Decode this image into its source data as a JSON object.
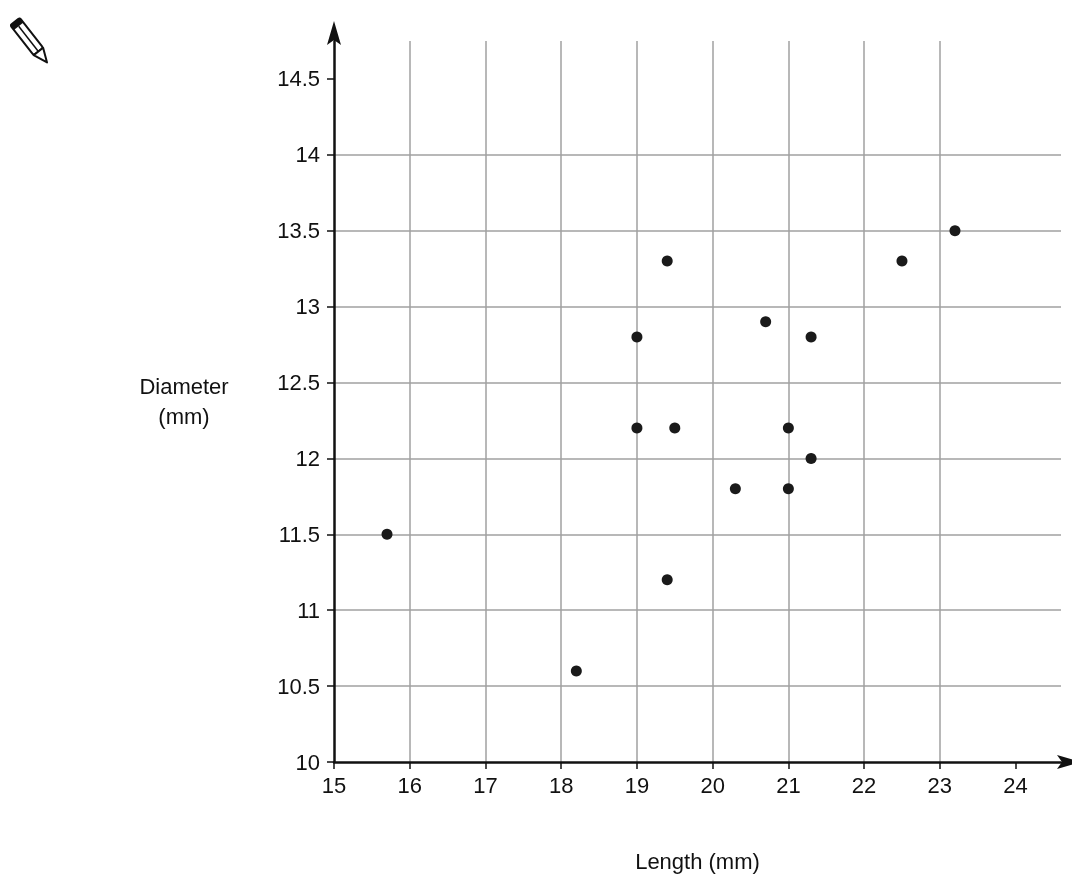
{
  "chart_data": {
    "type": "scatter",
    "xlabel": "Length (mm)",
    "ylabel": "Diameter\n(mm)",
    "x": [
      15.7,
      18.2,
      19.4,
      19.0,
      19.5,
      19.0,
      19.4,
      20.3,
      20.7,
      21.0,
      21.0,
      21.3,
      21.3,
      22.5,
      23.2
    ],
    "values": [
      11.5,
      10.6,
      11.2,
      12.2,
      12.2,
      12.8,
      13.3,
      11.8,
      12.9,
      12.2,
      11.8,
      12.0,
      12.8,
      13.3,
      13.5
    ],
    "color": "#1a1a1a",
    "marker": "circle",
    "grid": true,
    "xlim": [
      15,
      24.6
    ],
    "xticks": [
      15,
      16,
      17,
      18,
      19,
      20,
      21,
      22,
      23,
      24
    ],
    "ylim": [
      10,
      14.75
    ],
    "yticks": [
      10,
      10.5,
      11,
      11.5,
      12,
      12.5,
      13,
      13.5,
      14,
      14.5
    ]
  }
}
